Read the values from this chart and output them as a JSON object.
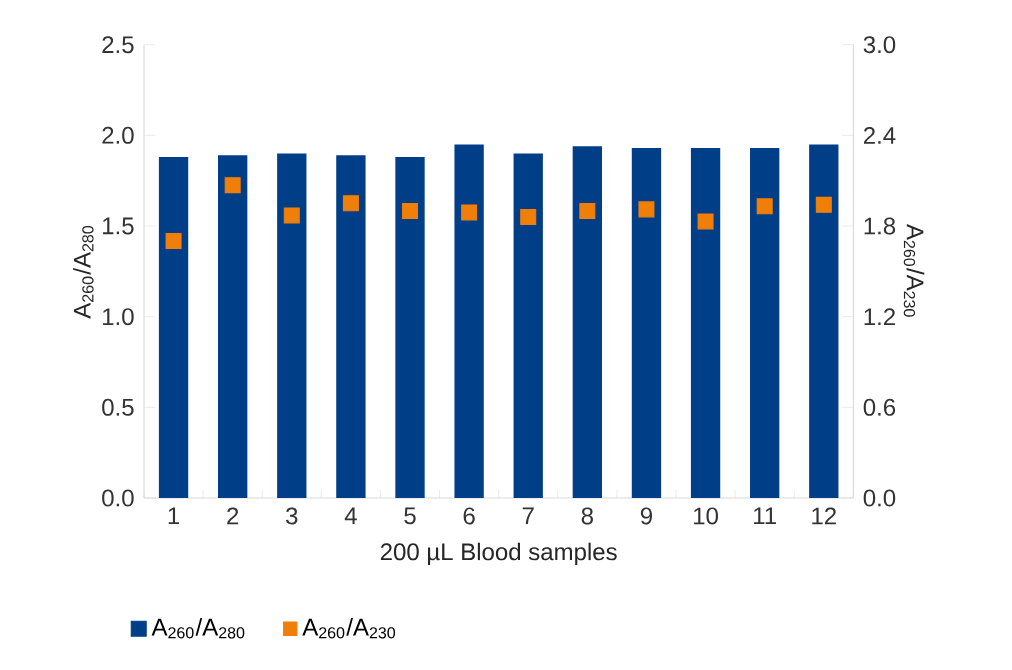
{
  "chart_data": {
    "type": "bar",
    "xlabel": "200 µL Blood samples",
    "ylabel": "A$_{260}$/A$_{280}$",
    "y2label": "A$_{260}$/A$_{230}$",
    "categories": [
      "1",
      "2",
      "3",
      "4",
      "5",
      "6",
      "7",
      "8",
      "9",
      "10",
      "11",
      "12"
    ],
    "series": [
      {
        "name": "A$_{260}$/A$_{280}$",
        "color": "#003f87",
        "values": [
          1.88,
          1.89,
          1.9,
          1.89,
          1.88,
          1.95,
          1.9,
          1.94,
          1.93,
          1.93,
          1.93,
          1.95
        ]
      },
      {
        "name": "A$_{260}$/A$_{230}$",
        "type": "scatter",
        "axis": "y2",
        "marker": "square",
        "color": "#f07f09",
        "values": [
          1.7,
          2.07,
          1.87,
          1.95,
          1.9,
          1.89,
          1.86,
          1.9,
          1.91,
          1.83,
          1.93,
          1.94
        ]
      }
    ],
    "ylim": [
      0,
      2.5
    ],
    "yticks": [
      {
        "value": 0,
        "label": "0.0"
      },
      {
        "value": 0.5,
        "label": "0.5"
      },
      {
        "value": 1,
        "label": "1.0"
      },
      {
        "value": 1.5,
        "label": "1.5"
      },
      {
        "value": 2,
        "label": "2.0"
      },
      {
        "value": 2.5,
        "label": "2.5"
      }
    ],
    "y2lim": [
      0,
      3
    ],
    "y2ticks": [
      {
        "value": 0,
        "label": "0.0"
      },
      {
        "value": 0.6,
        "label": "0.6"
      },
      {
        "value": 1.2,
        "label": "1.2"
      },
      {
        "value": 1.8,
        "label": "1.8"
      },
      {
        "value": 2.4,
        "label": "2.4"
      },
      {
        "value": 3,
        "label": "3.0"
      }
    ],
    "grid": false,
    "legend": "bottom left"
  }
}
